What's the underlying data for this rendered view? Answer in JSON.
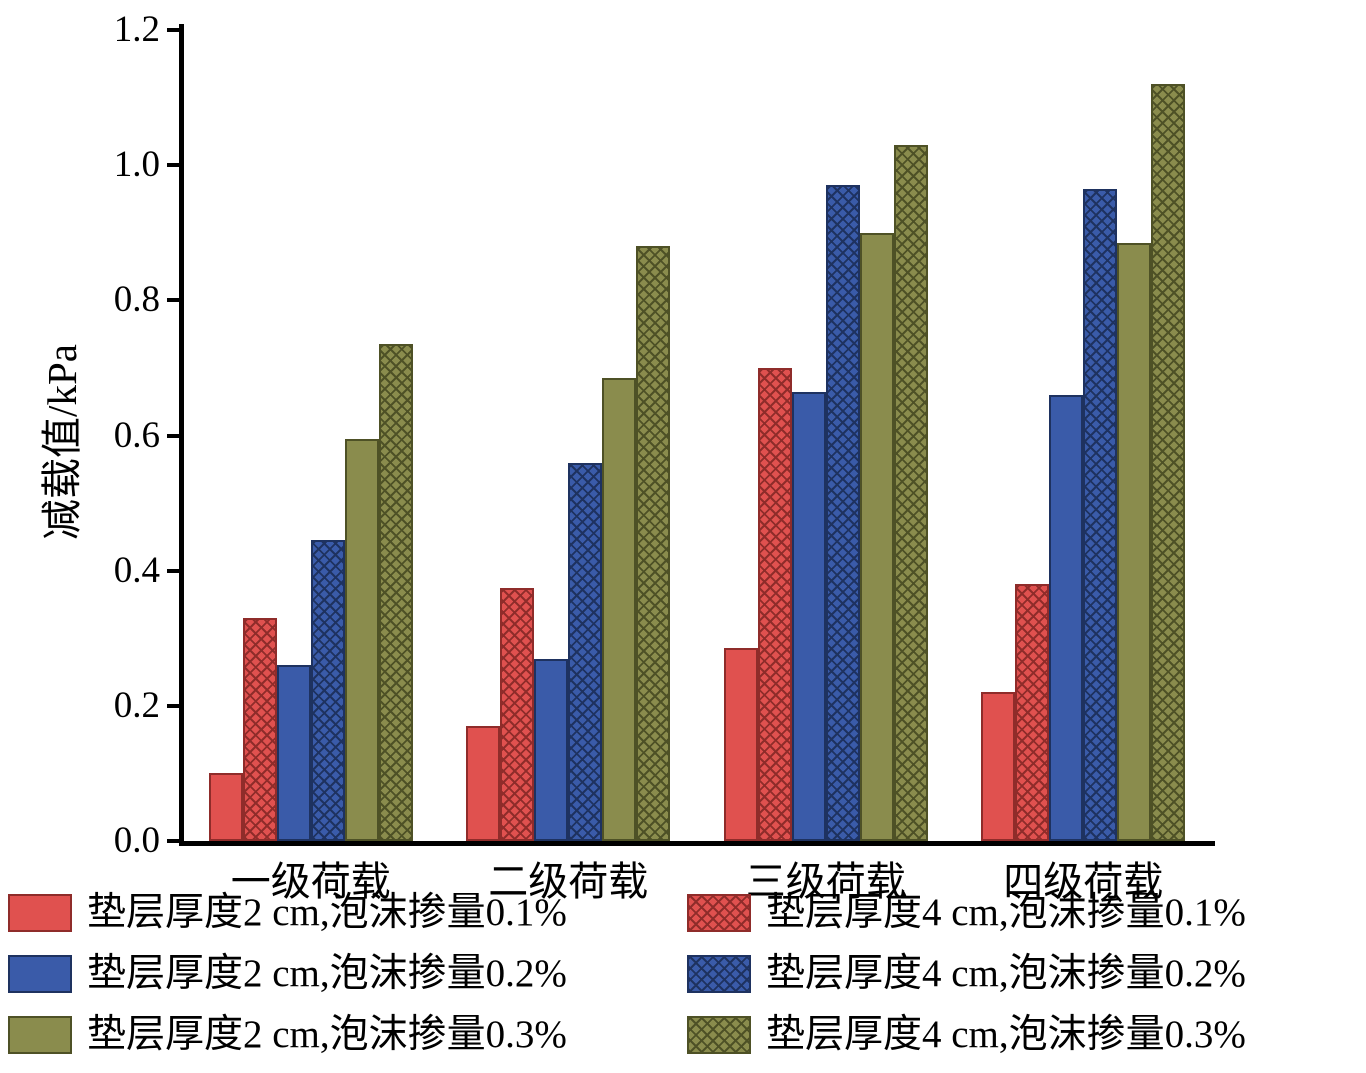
{
  "chart_data": {
    "type": "bar",
    "title": "",
    "xlabel": "",
    "ylabel": "减载值/kPa",
    "ylim": [
      0,
      1.2
    ],
    "yticks": [
      0.0,
      0.2,
      0.4,
      0.6,
      0.8,
      1.0,
      1.2
    ],
    "categories": [
      "一级荷载",
      "二级荷载",
      "三级荷载",
      "四级荷载"
    ],
    "series": [
      {
        "name": "垫层厚度2 cm,泡沫掺量0.1%",
        "color": "#e0514f",
        "edge": "#8f2c2a",
        "hatch": false,
        "values": [
          0.1,
          0.17,
          0.285,
          0.22
        ]
      },
      {
        "name": "垫层厚度4 cm,泡沫掺量0.1%",
        "color": "#e0514f",
        "edge": "#8f2c2a",
        "hatch": true,
        "values": [
          0.33,
          0.375,
          0.7,
          0.38
        ]
      },
      {
        "name": "垫层厚度2 cm,泡沫掺量0.2%",
        "color": "#3a5ba9",
        "edge": "#1e3260",
        "hatch": false,
        "values": [
          0.26,
          0.27,
          0.665,
          0.66
        ]
      },
      {
        "name": "垫层厚度4 cm,泡沫掺量0.2%",
        "color": "#3a5ba9",
        "edge": "#1e3260",
        "hatch": true,
        "values": [
          0.445,
          0.56,
          0.97,
          0.965
        ]
      },
      {
        "name": "垫层厚度2 cm,泡沫掺量0.3%",
        "color": "#8a8c4d",
        "edge": "#4e5126",
        "hatch": false,
        "values": [
          0.595,
          0.685,
          0.9,
          0.885
        ]
      },
      {
        "name": "垫层厚度4 cm,泡沫掺量0.3%",
        "color": "#8a8c4d",
        "edge": "#4e5126",
        "hatch": true,
        "values": [
          0.735,
          0.88,
          1.03,
          1.12
        ]
      }
    ],
    "legend_position": "bottom",
    "legend_columns": 2,
    "grid": false,
    "axis_color": "#000000"
  }
}
